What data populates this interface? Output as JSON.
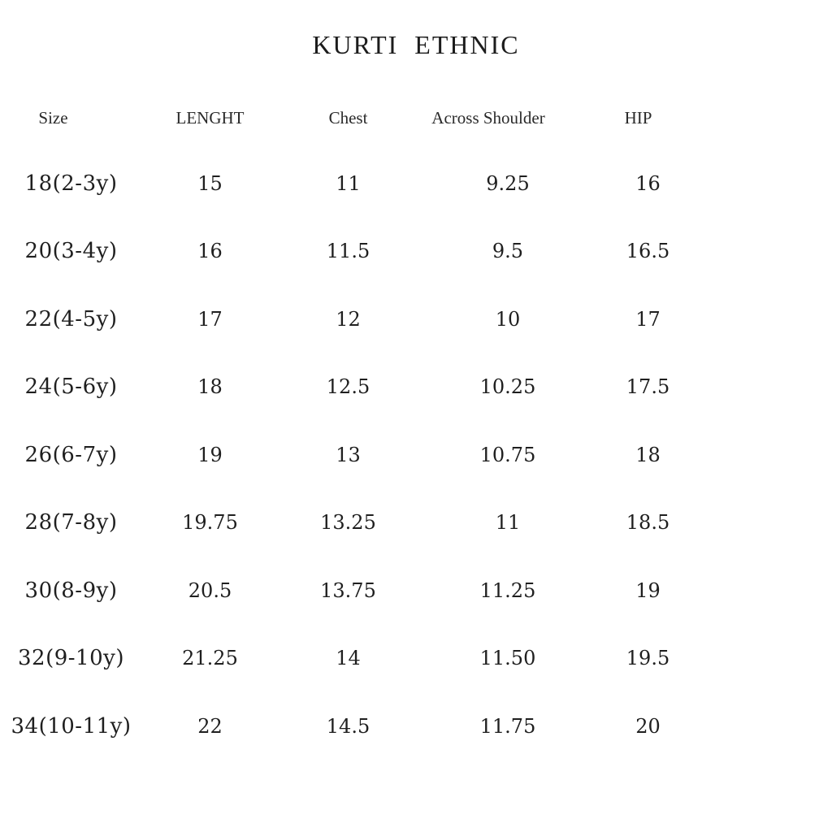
{
  "title": "KURTI  ETHNIC",
  "chart_data": {
    "type": "table",
    "title": "KURTI ETHNIC",
    "columns": [
      "Size",
      "LENGHT",
      "Chest",
      "Across Shoulder",
      "HIP"
    ],
    "rows": [
      [
        "18(2-3y)",
        "15",
        "11",
        "9.25",
        "16"
      ],
      [
        "20(3-4y)",
        "16",
        "11.5",
        "9.5",
        "16.5"
      ],
      [
        "22(4-5y)",
        "17",
        "12",
        "10",
        "17"
      ],
      [
        "24(5-6y)",
        "18",
        "12.5",
        "10.25",
        "17.5"
      ],
      [
        "26(6-7y)",
        "19",
        "13",
        "10.75",
        "18"
      ],
      [
        "28(7-8y)",
        "19.75",
        "13.25",
        "11",
        "18.5"
      ],
      [
        "30(8-9y)",
        "20.5",
        "13.75",
        "11.25",
        "19"
      ],
      [
        "32(9-10y)",
        "21.25",
        "14",
        "11.50",
        "19.5"
      ],
      [
        "34(10-11y)",
        "22",
        "14.5",
        "11.75",
        "20"
      ]
    ]
  }
}
